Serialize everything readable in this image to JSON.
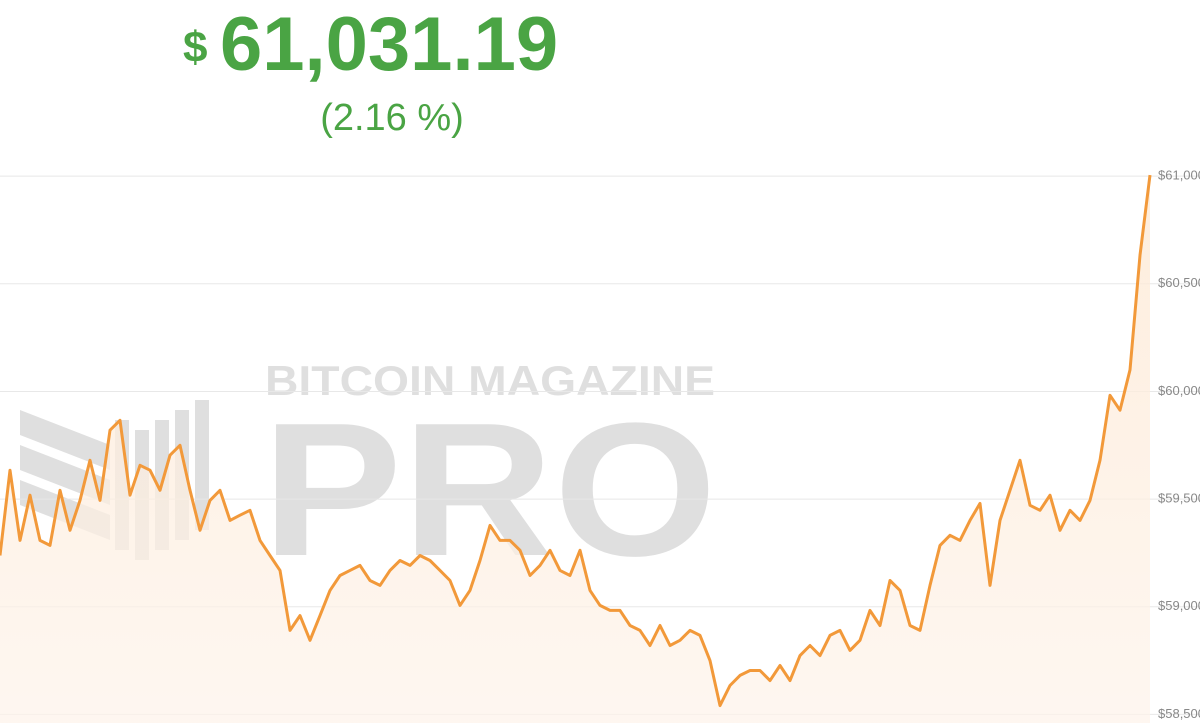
{
  "chart_data": {
    "type": "line",
    "price_symbol": "$",
    "price": "61,031.19",
    "change": "(2.16 %)",
    "watermark": "BITCOIN MAGAZINE",
    "watermark_sub": "PRO",
    "color": "#f2993a",
    "grid": true,
    "ylim": [
      58460,
      61075
    ],
    "yticks": [
      {
        "value": 58500,
        "label": "$58,500"
      },
      {
        "value": 59000,
        "label": "$59,000"
      },
      {
        "value": 59500,
        "label": "$59,500"
      },
      {
        "value": 60000,
        "label": "$60,000"
      },
      {
        "value": 60500,
        "label": "$60,500"
      },
      {
        "value": 61000,
        "label": "$61,000"
      }
    ],
    "values": [
      59238,
      59634,
      59308,
      59518,
      59308,
      59285,
      59541,
      59355,
      59494,
      59680,
      59494,
      59820,
      59866,
      59518,
      59657,
      59634,
      59541,
      59704,
      59750,
      59541,
      59355,
      59494,
      59541,
      59401,
      59425,
      59448,
      59308,
      59238,
      59169,
      58890,
      58959,
      58844,
      58959,
      59076,
      59145,
      59169,
      59192,
      59122,
      59099,
      59169,
      59215,
      59192,
      59238,
      59215,
      59169,
      59122,
      59006,
      59076,
      59215,
      59378,
      59308,
      59308,
      59262,
      59145,
      59192,
      59262,
      59169,
      59145,
      59262,
      59076,
      59006,
      58983,
      58983,
      58913,
      58890,
      58820,
      58913,
      58820,
      58844,
      58890,
      58867,
      58750,
      58541,
      58634,
      58681,
      58704,
      58704,
      58657,
      58727,
      58657,
      58773,
      58820,
      58773,
      58867,
      58890,
      58797,
      58844,
      58983,
      58913,
      59122,
      59076,
      58913,
      58890,
      59099,
      59285,
      59332,
      59308,
      59401,
      59480,
      59099,
      59401,
      59541,
      59680,
      59471,
      59448,
      59518,
      59355,
      59448,
      59401,
      59494,
      59680,
      59982,
      59913,
      60100,
      60633,
      61005
    ]
  }
}
